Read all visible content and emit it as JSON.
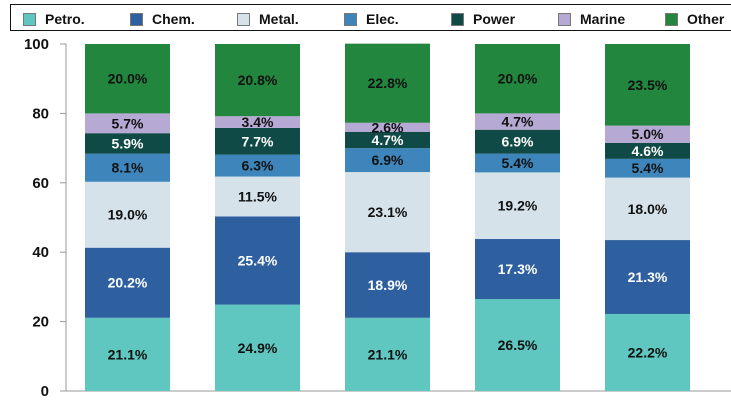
{
  "chart_data": {
    "type": "bar",
    "stacked": true,
    "categories": [
      "",
      "",
      "",
      "",
      ""
    ],
    "series": [
      {
        "name": "Petro.",
        "color": "#5fc7c0",
        "label_color": "#111111",
        "values": [
          21.1,
          24.9,
          21.1,
          26.5,
          22.2
        ],
        "labels": [
          "21.1%",
          "24.9%",
          "21.1%",
          "26.5%",
          "22.2%"
        ]
      },
      {
        "name": "Chem.",
        "color": "#2e5f9e",
        "label_color": "#ffffff",
        "values": [
          20.2,
          25.4,
          18.9,
          17.3,
          21.3
        ],
        "labels": [
          "20.2%",
          "25.4%",
          "18.9%",
          "17.3%",
          "21.3%"
        ]
      },
      {
        "name": "Metal.",
        "color": "#d5e2ea",
        "label_color": "#111111",
        "values": [
          19.0,
          11.5,
          23.1,
          19.2,
          18.0
        ],
        "labels": [
          "19.0%",
          "11.5%",
          "23.1%",
          "19.2%",
          "18.0%"
        ]
      },
      {
        "name": "Elec.",
        "color": "#3d85ba",
        "label_color": "#111111",
        "values": [
          8.1,
          6.3,
          6.9,
          5.4,
          5.4
        ],
        "labels": [
          "8.1%",
          "6.3%",
          "6.9%",
          "5.4%",
          "5.4%"
        ]
      },
      {
        "name": "Power",
        "color": "#0f4a46",
        "label_color": "#ffffff",
        "values": [
          5.9,
          7.7,
          4.7,
          6.9,
          4.6
        ],
        "labels": [
          "5.9%",
          "7.7%",
          "4.7%",
          "6.9%",
          "4.6%"
        ]
      },
      {
        "name": "Marine",
        "color": "#b6a9d4",
        "label_color": "#111111",
        "values": [
          5.7,
          3.4,
          2.6,
          4.7,
          5.0
        ],
        "labels": [
          "5.7%",
          "3.4%",
          "2.6%",
          "4.7%",
          "5.0%"
        ]
      },
      {
        "name": "Other",
        "color": "#23863f",
        "label_color": "#111111",
        "values": [
          20.0,
          20.8,
          22.8,
          20.0,
          23.5
        ],
        "labels": [
          "20.0%",
          "20.8%",
          "22.8%",
          "20.0%",
          "23.5%"
        ]
      }
    ],
    "yticks": [
      "0",
      "20",
      "40",
      "60",
      "80",
      "100"
    ],
    "ylim": [
      0,
      100
    ],
    "grid": false,
    "legend_position": "top"
  }
}
